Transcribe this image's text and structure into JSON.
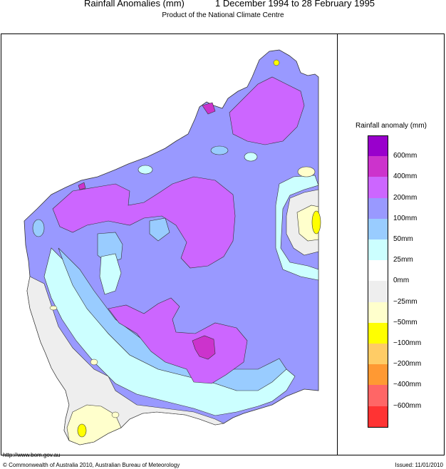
{
  "header": {
    "title": "Rainfall Anomalies (mm)",
    "date_range": "1 December 1994 to 28 February 1995",
    "subtitle": "Product of the National Climate Centre"
  },
  "legend": {
    "title": "Rainfall anomaly (mm)",
    "classes": [
      {
        "color": "#9900cc",
        "label": "600mm"
      },
      {
        "color": "#cc33cc",
        "label": "400mm"
      },
      {
        "color": "#cc66ff",
        "label": "200mm"
      },
      {
        "color": "#9999ff",
        "label": "100mm"
      },
      {
        "color": "#99ccff",
        "label": "50mm"
      },
      {
        "color": "#ccffff",
        "label": "25mm"
      },
      {
        "color": "#ffffff",
        "label": "0mm"
      },
      {
        "color": "#eeeeee",
        "label": "−25mm"
      },
      {
        "color": "#ffffcc",
        "label": "−50mm"
      },
      {
        "color": "#ffff00",
        "label": "−100mm"
      },
      {
        "color": "#ffcc66",
        "label": "−200mm"
      },
      {
        "color": "#ff9933",
        "label": "−400mm"
      },
      {
        "color": "#ff6666",
        "label": "−600mm"
      },
      {
        "color": "#ff3333",
        "label": ""
      }
    ]
  },
  "footer": {
    "url": "http://www.bom.gov.au",
    "copyright": "© Commonwealth of Australia 2010, Australian Bureau of Meteorology",
    "issued": "Issued: 11/01/2010"
  }
}
